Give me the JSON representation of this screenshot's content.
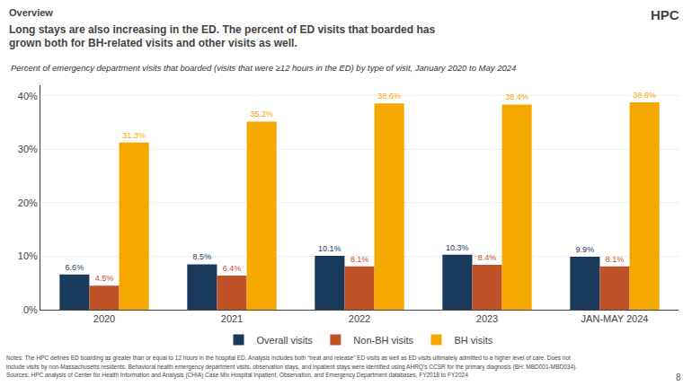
{
  "chart_data": {
    "type": "bar",
    "title": "Long stays are also increasing in the ED. The percent of ED visits that boarded has\ngrown both for BH-related visits and other visits as well.",
    "subtitle": "Percent of emergency department visits that boarded (visits that were ≥12 hours in the ED) by type of visit, January 2020 to May 2024",
    "categories": [
      "2020",
      "2021",
      "2022",
      "2023",
      "JAN-MAY 2024"
    ],
    "series": [
      {
        "name": "Overall visits",
        "color": "#1a3a5c",
        "values": [
          6.6,
          8.5,
          10.1,
          10.3,
          9.9
        ],
        "value_labels": [
          "6.6%",
          "8.5%",
          "10.1%",
          "10.3%",
          "9.9%"
        ]
      },
      {
        "name": "Non-BH visits",
        "color": "#c0522a",
        "values": [
          4.5,
          6.4,
          8.1,
          8.4,
          8.1
        ],
        "value_labels": [
          "4.5%",
          "6.4%",
          "8.1%",
          "8.4%",
          "8.1%"
        ]
      },
      {
        "name": "BH visits",
        "color": "#f5a800",
        "values": [
          31.3,
          35.2,
          38.6,
          38.4,
          38.8
        ],
        "value_labels": [
          "31.3%",
          "35.2%",
          "38.6%",
          "38.4%",
          "38.8%"
        ]
      }
    ],
    "ylim": [
      0,
      42
    ],
    "yticks": [
      {
        "value": 0,
        "label": "0%"
      },
      {
        "value": 10,
        "label": "10%"
      },
      {
        "value": 20,
        "label": "20%"
      },
      {
        "value": 30,
        "label": "30%"
      },
      {
        "value": 40,
        "label": "40%"
      }
    ],
    "grid": true,
    "legend": "bottom",
    "data_labels": true,
    "annotations": [
      "Overview",
      "HPC",
      "Notes: The HPC defines ED boarding as greater than or equal to 12 hours in the hospital ED. Analysis includes both “treat and release” ED visits as well as ED visits ultimately admitted to a higher level of care. Does not",
      "include visits by non-Massachusetts residents. Behavioral health emergency department visits, observation stays, and inpatient stays were identified using AHRQ’s CCSR for the primary diagnosis (BH: MBD001-MBD034).",
      "Sources: HPC analysis of Center for Health Information and Analysis (CHIA) Case Mix Hospital Inpatient, Observation, and Emergency Department databases, FY2018 to FY2024",
      "8"
    ]
  }
}
